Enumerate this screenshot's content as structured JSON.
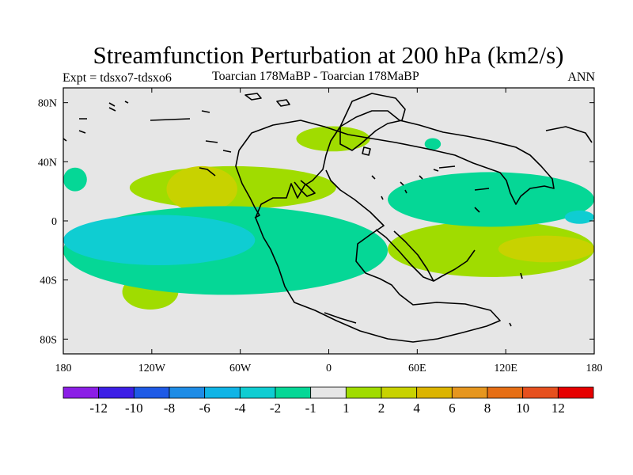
{
  "header": {
    "title": "Streamfunction Perturbation at 200 hPa (km2/s)",
    "experiment": "Expt = tdsxo7-tdsxo6",
    "period": "Toarcian 178MaBP - Toarcian 178MaBP",
    "season": "ANN"
  },
  "chart_data": {
    "type": "heatmap",
    "title": "Streamfunction Perturbation at 200 hPa (km2/s)",
    "projection": "cylindrical-equidistant",
    "xlim": [
      -180,
      180
    ],
    "ylim": [
      -90,
      90
    ],
    "x_ticks": [
      {
        "value": -180,
        "label": "180"
      },
      {
        "value": -120,
        "label": "120W"
      },
      {
        "value": -60,
        "label": "60W"
      },
      {
        "value": 0,
        "label": "0"
      },
      {
        "value": 60,
        "label": "60E"
      },
      {
        "value": 120,
        "label": "120E"
      },
      {
        "value": 180,
        "label": "180"
      }
    ],
    "y_ticks": [
      {
        "value": 80,
        "label": "80N"
      },
      {
        "value": 40,
        "label": "40N"
      },
      {
        "value": 0,
        "label": "0"
      },
      {
        "value": -40,
        "label": "40S"
      },
      {
        "value": -80,
        "label": "80S"
      }
    ],
    "colorbar": {
      "labels": [
        "-12",
        "-10",
        "-8",
        "-6",
        "-4",
        "-2",
        "-1",
        "1",
        "2",
        "4",
        "6",
        "8",
        "10",
        "12"
      ],
      "colors": [
        "#8b1ee6",
        "#3c1ee6",
        "#1e5ae6",
        "#1e8ce6",
        "#0fb4e6",
        "#0fcdd2",
        "#05d796",
        "#e6e6e6",
        "#a0dc00",
        "#c8d200",
        "#dcb400",
        "#e6961e",
        "#e66e14",
        "#e6501e",
        "#e60000"
      ]
    },
    "regions": [
      {
        "name": "north-atlantic-positive",
        "level": "1 to 2",
        "color": "#a0dc00",
        "lon": [
          -22,
          28
        ],
        "lat": [
          47,
          64
        ]
      },
      {
        "name": "north-pacific-positive",
        "level": "1 to 2",
        "color": "#a0dc00",
        "lon": [
          -135,
          5
        ],
        "lat": [
          8,
          37
        ]
      },
      {
        "name": "north-pacific-core",
        "level": "2 to 4",
        "color": "#c8d200",
        "lon": [
          -110,
          -62
        ],
        "lat": [
          6,
          37
        ]
      },
      {
        "name": "south-indian-positive",
        "level": "1 to 2",
        "color": "#a0dc00",
        "lon": [
          40,
          180
        ],
        "lat": [
          -38,
          0
        ]
      },
      {
        "name": "south-indian-core",
        "level": "2 to 4",
        "color": "#c8d200",
        "lon": [
          115,
          180
        ],
        "lat": [
          -28,
          -10
        ]
      },
      {
        "name": "south-pacific-positive",
        "level": "1 to 2",
        "color": "#a0dc00",
        "lon": [
          -140,
          -102
        ],
        "lat": [
          -60,
          -36
        ]
      },
      {
        "name": "west-south-pacific-positive",
        "level": "1 to 2",
        "color": "#a0dc00",
        "lon": [
          -180,
          -160
        ],
        "lat": [
          -27,
          -16
        ]
      },
      {
        "name": "tropical-pacific-negative",
        "level": "-2 to -1",
        "color": "#05d796",
        "lon": [
          -180,
          40
        ],
        "lat": [
          -50,
          10
        ]
      },
      {
        "name": "tropical-pacific-core",
        "level": "-4 to -2",
        "color": "#0fcdd2",
        "lon": [
          -180,
          -50
        ],
        "lat": [
          -30,
          4
        ]
      },
      {
        "name": "tethys-negative",
        "level": "-2 to -1",
        "color": "#05d796",
        "lon": [
          40,
          180
        ],
        "lat": [
          -4,
          33
        ]
      },
      {
        "name": "east-tethys-core",
        "level": "-4 to -2",
        "color": "#0fcdd2",
        "lon": [
          160,
          180
        ],
        "lat": [
          -2,
          7
        ]
      },
      {
        "name": "west-pacific-negative",
        "level": "-2 to -1",
        "color": "#05d796",
        "lon": [
          -180,
          -164
        ],
        "lat": [
          20,
          36
        ]
      },
      {
        "name": "siberia-negative",
        "level": "-2 to -1",
        "color": "#05d796",
        "lon": [
          65,
          76
        ],
        "lat": [
          48,
          56
        ]
      }
    ]
  }
}
